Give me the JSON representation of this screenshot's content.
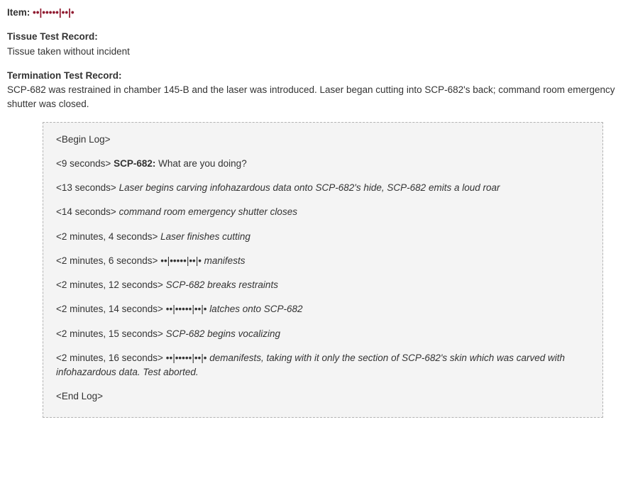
{
  "item": {
    "label": "Item:",
    "code": "••|•••••|••|•"
  },
  "tissue": {
    "label": "Tissue Test Record:",
    "text": "Tissue taken without incident"
  },
  "termination": {
    "label": "Termination Test Record:",
    "text": "SCP-682 was restrained in chamber 145-B and the laser was introduced. Laser began cutting into SCP-682's back; command room emergency shutter was closed."
  },
  "log": {
    "begin": "<Begin Log>",
    "l1": {
      "time": "<9 seconds>",
      "speaker": "SCP-682:",
      "text": "What are you doing?"
    },
    "l2": {
      "time": "<13 seconds>",
      "text": "Laser begins carving infohazardous data onto SCP-682's hide, SCP-682 emits a loud roar"
    },
    "l3": {
      "time": "<14 seconds>",
      "text": "command room emergency shutter closes"
    },
    "l4": {
      "time": "<2 minutes, 4 seconds>",
      "text": "Laser finishes cutting"
    },
    "l5": {
      "time": "<2 minutes, 6 seconds>",
      "code": "••|•••••|••|•",
      "text": "manifests"
    },
    "l6": {
      "time": "<2 minutes, 12 seconds>",
      "text": "SCP-682 breaks restraints"
    },
    "l7": {
      "time": "<2 minutes, 14 seconds>",
      "code": "••|•••••|••|•",
      "text": "latches onto SCP-682"
    },
    "l8": {
      "time": "<2 minutes, 15 seconds>",
      "text": "SCP-682 begins vocalizing"
    },
    "l9": {
      "time": "<2 minutes, 16 seconds>",
      "code": "••|•••••|••|•",
      "text": "demanifests, taking with it only the section of SCP-682's skin which was carved with infohazardous data. Test aborted."
    },
    "end": "<End Log>"
  }
}
